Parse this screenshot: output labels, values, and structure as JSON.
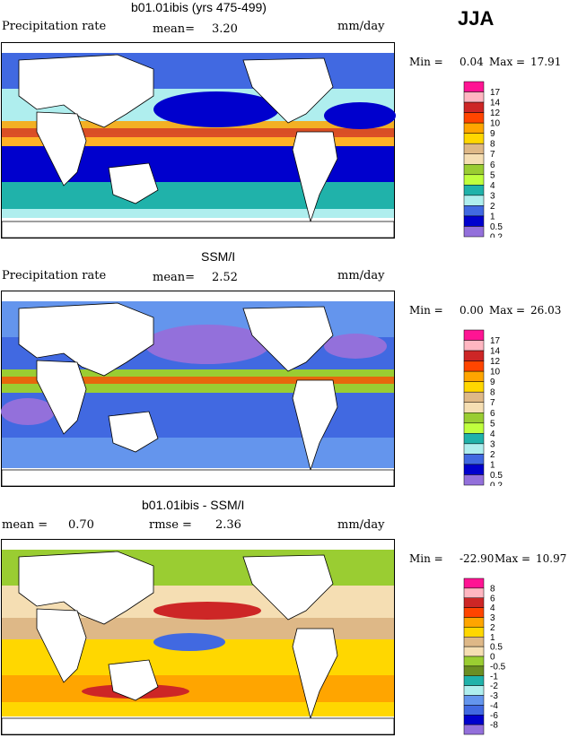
{
  "season": "JJA",
  "units": "mm/day",
  "panels": [
    {
      "title": "b01.01ibis (yrs 475-499)",
      "left_label": "Precipitation rate",
      "stat1_label": "mean=",
      "stat1_value": "3.20",
      "stat2_label": "",
      "stat2_value": "",
      "min_label": "Min =",
      "min_value": "0.04",
      "max_label": "Max =",
      "max_value": "17.91",
      "levels": [
        "17",
        "14",
        "12",
        "10",
        "9",
        "8",
        "7",
        "6",
        "5",
        "4",
        "3",
        "2",
        "1",
        "0.5",
        "0.2"
      ],
      "colors": [
        "#ff1493",
        "#ffb6c1",
        "#cd2626",
        "#ff4500",
        "#ffa500",
        "#ffd700",
        "#deb887",
        "#f5deb3",
        "#9acd32",
        "#c0ff3e",
        "#20b2aa",
        "#afeeee",
        "#4169e1",
        "#0000cd",
        "#9370db"
      ]
    },
    {
      "title": "SSM/I",
      "left_label": "Precipitation rate",
      "stat1_label": "mean=",
      "stat1_value": "2.52",
      "stat2_label": "",
      "stat2_value": "",
      "min_label": "Min =",
      "min_value": "0.00",
      "max_label": "Max =",
      "max_value": "26.03",
      "levels": [
        "17",
        "14",
        "12",
        "10",
        "9",
        "8",
        "7",
        "6",
        "5",
        "4",
        "3",
        "2",
        "1",
        "0.5",
        "0.2"
      ],
      "colors": [
        "#ff1493",
        "#ffb6c1",
        "#cd2626",
        "#ff4500",
        "#ffa500",
        "#ffd700",
        "#deb887",
        "#f5deb3",
        "#9acd32",
        "#c0ff3e",
        "#20b2aa",
        "#afeeee",
        "#4169e1",
        "#0000cd",
        "#9370db"
      ]
    },
    {
      "title": "b01.01ibis - SSM/I",
      "left_label": "",
      "stat1_label": "mean =",
      "stat1_value": "0.70",
      "stat2_label": "rmse =",
      "stat2_value": "2.36",
      "min_label": "Min =",
      "min_value": "-22.90",
      "max_label": "Max =",
      "max_value": "10.97",
      "levels": [
        "8",
        "6",
        "4",
        "3",
        "2",
        "1",
        "0.5",
        "0",
        "-0.5",
        "-1",
        "-2",
        "-3",
        "-4",
        "-6",
        "-8"
      ],
      "colors": [
        "#ff1493",
        "#ffb6c1",
        "#cd2626",
        "#ff4500",
        "#ffa500",
        "#ffd700",
        "#deb887",
        "#f5deb3",
        "#9acd32",
        "#6b8e23",
        "#20b2aa",
        "#afeeee",
        "#6495ed",
        "#4169e1",
        "#0000cd",
        "#9370db"
      ]
    }
  ],
  "chart_data": [
    {
      "type": "heatmap",
      "title": "b01.01ibis (yrs 475-499)",
      "variable": "Precipitation rate",
      "units": "mm/day",
      "mean": 3.2,
      "min": 0.04,
      "max": 17.91,
      "contour_levels": [
        0.2,
        0.5,
        1,
        2,
        3,
        4,
        5,
        6,
        7,
        8,
        9,
        10,
        12,
        14,
        17
      ]
    },
    {
      "type": "heatmap",
      "title": "SSM/I",
      "variable": "Precipitation rate",
      "units": "mm/day",
      "mean": 2.52,
      "min": 0.0,
      "max": 26.03,
      "contour_levels": [
        0.2,
        0.5,
        1,
        2,
        3,
        4,
        5,
        6,
        7,
        8,
        9,
        10,
        12,
        14,
        17
      ]
    },
    {
      "type": "heatmap",
      "title": "b01.01ibis - SSM/I",
      "units": "mm/day",
      "mean": 0.7,
      "rmse": 2.36,
      "min": -22.9,
      "max": 10.97,
      "contour_levels": [
        -8,
        -6,
        -4,
        -3,
        -2,
        -1,
        -0.5,
        0,
        0.5,
        1,
        2,
        3,
        4,
        6,
        8
      ]
    }
  ]
}
